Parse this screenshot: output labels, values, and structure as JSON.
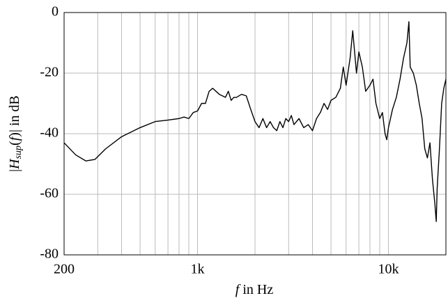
{
  "chart_data": {
    "type": "line",
    "log_x": true,
    "grid": true,
    "xlabel": [
      "f",
      " in Hz"
    ],
    "ylabel": [
      "|",
      "H",
      "sup",
      "(",
      "f",
      ")| in dB"
    ],
    "xlim": [
      200,
      20000
    ],
    "ylim": [
      -80,
      0
    ],
    "xticks": [
      200,
      {
        "value": 1000,
        "label": "1k"
      },
      {
        "value": 10000,
        "label": "10k"
      }
    ],
    "xminor": [
      300,
      400,
      500,
      600,
      700,
      800,
      900,
      2000,
      3000,
      4000,
      5000,
      6000,
      7000,
      8000,
      9000
    ],
    "yticks": [
      -80,
      -60,
      -40,
      -20,
      0
    ],
    "color": "#000000",
    "x": [
      200,
      230,
      260,
      290,
      330,
      400,
      500,
      600,
      700,
      800,
      850,
      900,
      950,
      1000,
      1050,
      1100,
      1150,
      1200,
      1300,
      1400,
      1450,
      1500,
      1550,
      1600,
      1700,
      1800,
      1900,
      2000,
      2100,
      2200,
      2300,
      2400,
      2500,
      2600,
      2700,
      2800,
      2900,
      3000,
      3100,
      3200,
      3400,
      3600,
      3800,
      4000,
      4200,
      4400,
      4600,
      4800,
      5000,
      5300,
      5600,
      5800,
      6000,
      6300,
      6500,
      6800,
      7000,
      7300,
      7600,
      8000,
      8300,
      8600,
      9000,
      9300,
      9600,
      9800,
      10000,
      10500,
      11000,
      11500,
      12000,
      12500,
      12800,
      13000,
      13500,
      14000,
      14500,
      15000,
      15500,
      16000,
      16500,
      17000,
      17500,
      17800,
      18000,
      18500,
      19000,
      19500,
      20000
    ],
    "values": [
      -43,
      -47,
      -49,
      -48.5,
      -45,
      -41,
      -38,
      -36,
      -35.5,
      -35,
      -34.5,
      -35,
      -33,
      -32.5,
      -30,
      -30,
      -26,
      -25,
      -27,
      -28,
      -26,
      -29,
      -28,
      -28,
      -27,
      -27.5,
      -32,
      -36,
      -38,
      -35,
      -38,
      -36,
      -38,
      -39,
      -36,
      -38,
      -35,
      -36,
      -34,
      -37,
      -35,
      -38,
      -37,
      -39,
      -35,
      -33,
      -30,
      -32,
      -29,
      -28,
      -25,
      -18,
      -24,
      -15,
      -6,
      -20,
      -13,
      -18,
      -26,
      -24,
      -22,
      -30,
      -35,
      -33,
      -40,
      -42,
      -38,
      -32,
      -28,
      -22,
      -15,
      -10,
      -3,
      -18,
      -20,
      -24,
      -30,
      -35,
      -45,
      -48,
      -43,
      -55,
      -63,
      -69,
      -58,
      -45,
      -30,
      -25,
      -22
    ]
  }
}
